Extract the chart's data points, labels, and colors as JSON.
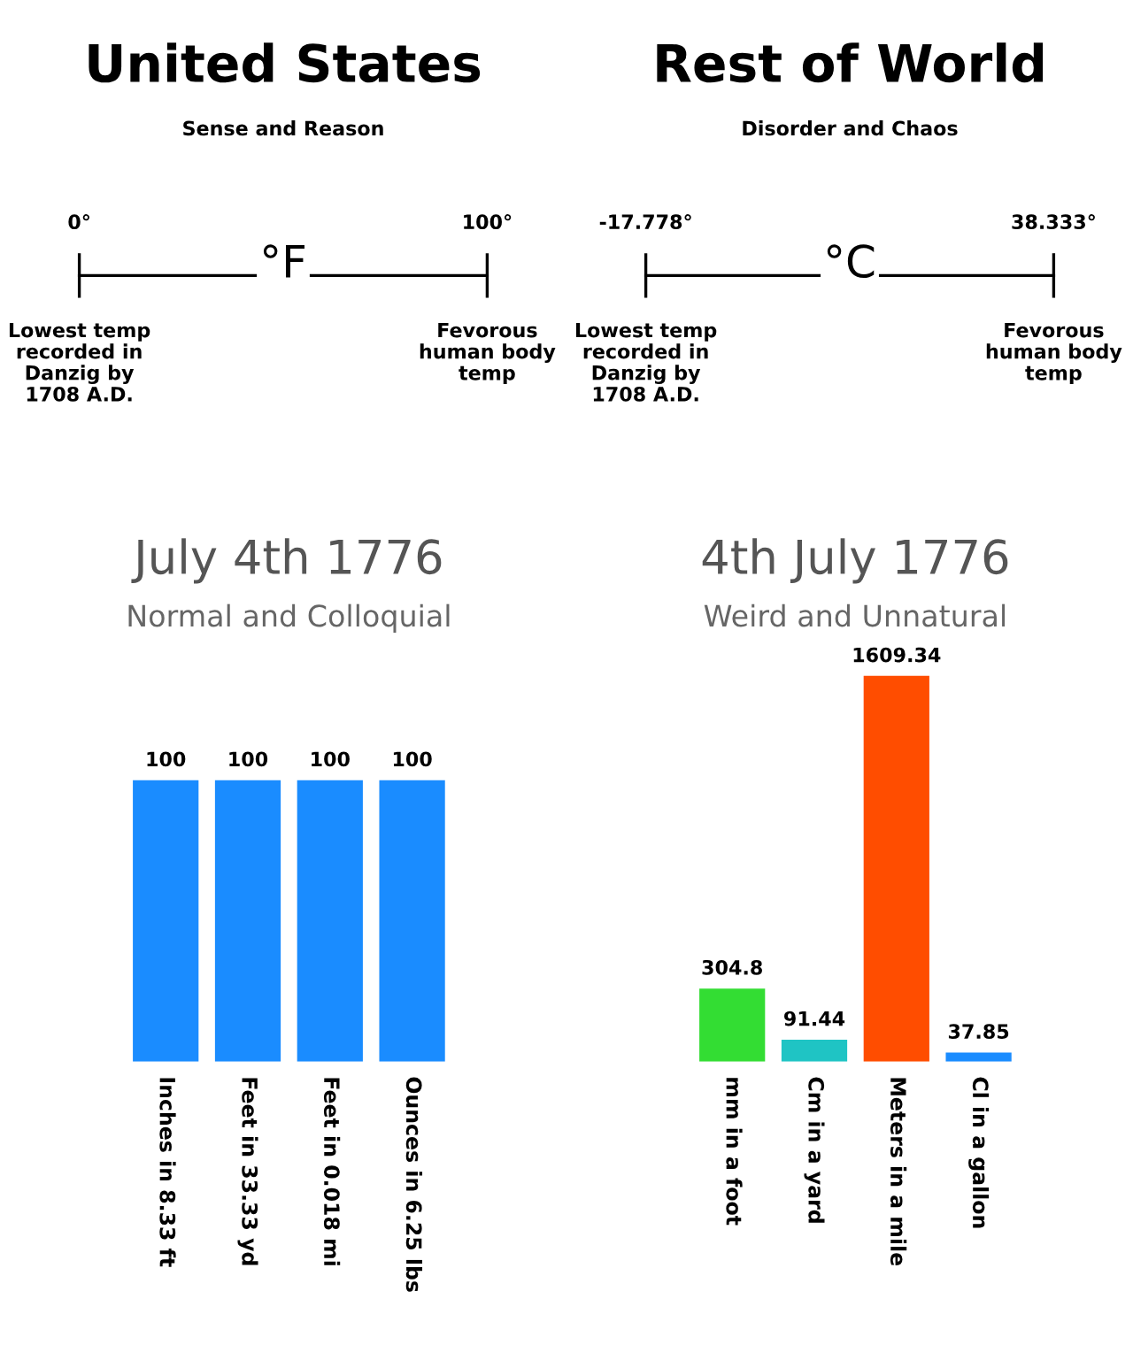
{
  "chart_data": [
    {
      "type": "other",
      "title": "United States",
      "subtitle": "Sense and Reason",
      "annotations": [
        "0°",
        "100°",
        "°F",
        "Lowest temp\nrecorded in\nDanzig by\n1708 A.D.",
        "Fevorous\nhuman body\ntemp"
      ]
    },
    {
      "type": "other",
      "title": "Rest of World",
      "subtitle": "Disorder and Chaos",
      "annotations": [
        "-17.778°",
        "38.333°",
        "°C",
        "Lowest temp\nrecorded in\nDanzig by\n1708 A.D.",
        "Fevorous\nhuman body\ntemp"
      ]
    },
    {
      "type": "bar",
      "title": "July 4th 1776",
      "subtitle": "Normal and Colloquial",
      "categories": [
        "Inches in 8.33 ft",
        "Feet in 33.33 yd",
        "Feet in 0.018 mi",
        "Ounces in 6.25 lbs"
      ],
      "values": [
        100,
        100,
        100,
        100
      ],
      "colors": [
        "#1a8cff",
        "#1a8cff",
        "#1a8cff",
        "#1a8cff"
      ],
      "data_labels": true
    },
    {
      "type": "bar",
      "title": "4th July 1776",
      "subtitle": "Weird and Unnatural",
      "categories": [
        "mm in a foot",
        "Cm in a yard",
        "Meters in a mile",
        "Cl in a gallon"
      ],
      "values": [
        304.8,
        91.44,
        1609.34,
        37.85
      ],
      "colors": [
        "#33dd33",
        "#1fc4c4",
        "#ff4d00",
        "#1a8cff"
      ],
      "data_labels": true
    }
  ]
}
